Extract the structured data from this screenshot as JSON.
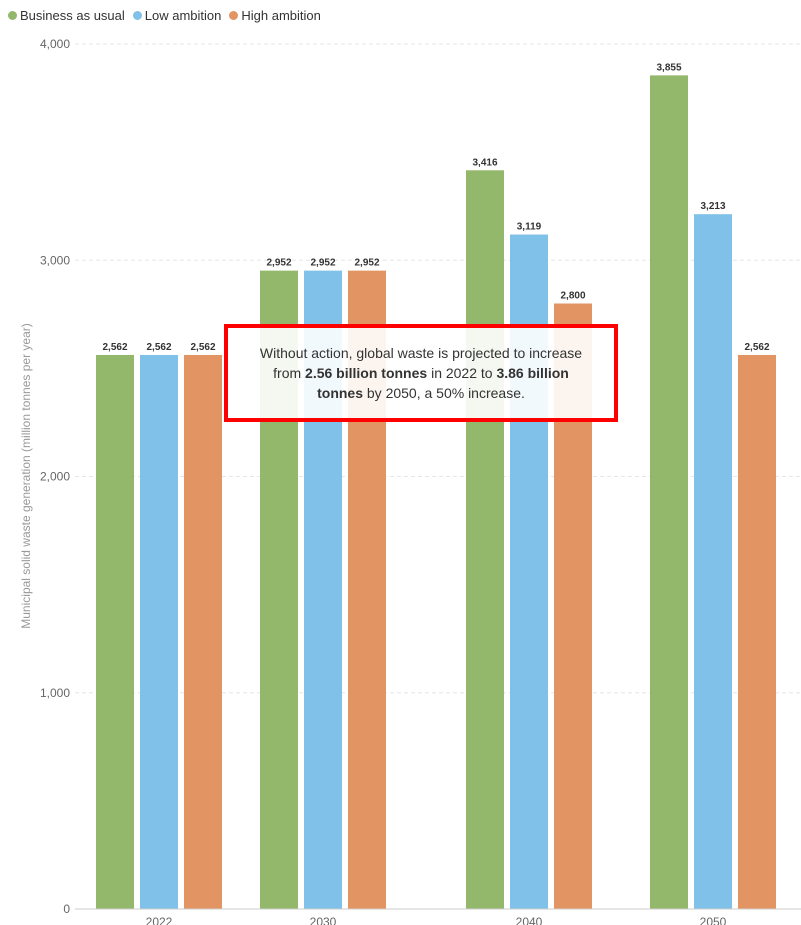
{
  "chart_data": {
    "type": "bar",
    "categories": [
      "2022",
      "2030",
      "2040",
      "2050"
    ],
    "series": [
      {
        "name": "Business as usual",
        "color": "#93b86b",
        "values": [
          2562,
          2952,
          3416,
          3855
        ],
        "labels": [
          "2,562",
          "2,952",
          "3,416",
          "3,855"
        ]
      },
      {
        "name": "Low ambition",
        "color": "#7fc1e8",
        "values": [
          2562,
          2952,
          3119,
          3213
        ],
        "labels": [
          "2,562",
          "2,952",
          "3,119",
          "3,213"
        ]
      },
      {
        "name": "High ambition",
        "color": "#e29562",
        "values": [
          2562,
          2952,
          2800,
          2562
        ],
        "labels": [
          "2,562",
          "2,952",
          "2,800",
          "2,562"
        ]
      }
    ],
    "ylabel": "Municipal solid waste generation (million tonnes per year)",
    "ylim": [
      0,
      4000
    ],
    "yticks": [
      0,
      1000,
      2000,
      3000,
      4000
    ],
    "ytick_labels": [
      "0",
      "1,000",
      "2,000",
      "3,000",
      "4,000"
    ],
    "grid": true,
    "legend": "top-left"
  },
  "callout": {
    "text_1": "Without action, global waste is projected to increase from ",
    "bold_1": "2.56 billion tonnes",
    "text_2": " in 2022 to ",
    "bold_2": "3.86 billion tonnes",
    "text_3": " by 2050, a 50% increase."
  }
}
